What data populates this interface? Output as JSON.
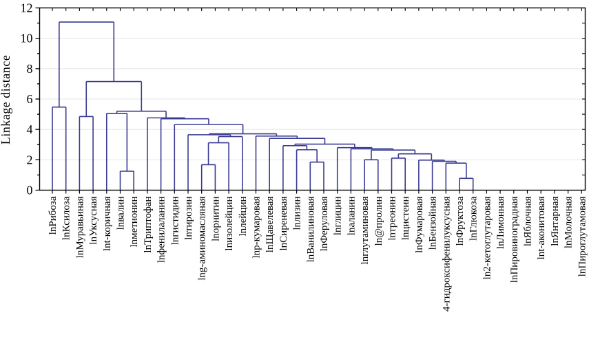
{
  "chart_data": {
    "type": "dendrogram",
    "title": "",
    "ylabel": "Linkage distance",
    "y_axis": {
      "min": 0,
      "max": 12,
      "major_tick_step": 2,
      "minor_tick_step": 1,
      "tick_labels": [
        "0",
        "2",
        "4",
        "6",
        "8",
        "10",
        "12"
      ],
      "grid_at_major_ticks": true
    },
    "legend": "none",
    "leaves": [
      "lnРибоза",
      "lnКсилоза",
      "lnМуравьиная",
      "lnУксусная",
      "lnt-коричная",
      "lnвалин",
      "lnметионин",
      "lnТриптофан",
      "lnфенилаланин",
      "lnгистидин",
      "lnтирозин",
      "lng-аминомасляная",
      "lnорнитин",
      "lnизолейцин",
      "lnлейцин",
      "lnp-кумаровая",
      "lnЩавелевая",
      "lnСиреневая",
      "lnлизин",
      "lnВанилиновая",
      "lnФеруловая",
      "lnглицин",
      "lnаланин",
      "lnглутаминовая",
      "ln@пролин",
      "lnтреонин",
      "lnцистеин",
      "lnФумаровая",
      "lnБензойная",
      "4-гидроксифенилуксусная",
      "lnФруктоза",
      "lnГлюкоза",
      "ln2-кетоглутаровая",
      "lnЛимонная",
      "lnПировиноградная",
      "lnЯблочная",
      "lnt-аконитовая",
      "lnЯнтарная",
      "lnМолочная",
      "lnПироглутамовая"
    ],
    "unconnected_leaves": [
      "ln2-кетоглутаровая",
      "lnЛимонная",
      "lnПировиноградная",
      "lnЯблочная",
      "lnt-аконитовая",
      "lnЯнтарная",
      "lnМолочная",
      "lnПироглутамовая"
    ],
    "merges": [
      {
        "id": "m0",
        "a": 5,
        "b": 6,
        "h": 1.25
      },
      {
        "id": "m1",
        "a": 4,
        "b": "m0",
        "h": 5.05
      },
      {
        "id": "m2",
        "a": 11,
        "b": 12,
        "h": 1.68
      },
      {
        "id": "m3",
        "a": "m2",
        "b": 13,
        "h": 3.12
      },
      {
        "id": "m4",
        "a": "m3",
        "b": 14,
        "h": 3.53
      },
      {
        "id": "m5",
        "a": 10,
        "b": "m4",
        "h": 3.65
      },
      {
        "id": "m6",
        "a": 19,
        "b": 20,
        "h": 1.85
      },
      {
        "id": "m7",
        "a": 18,
        "b": "m6",
        "h": 2.66
      },
      {
        "id": "m8",
        "a": 17,
        "b": "m7",
        "h": 2.93
      },
      {
        "id": "m9",
        "a": 30,
        "b": 31,
        "h": 0.78
      },
      {
        "id": "m10",
        "a": 29,
        "b": "m9",
        "h": 1.78
      },
      {
        "id": "m11",
        "a": 28,
        "b": "m10",
        "h": 1.9
      },
      {
        "id": "m12",
        "a": 27,
        "b": "m11",
        "h": 1.98
      },
      {
        "id": "m13",
        "a": 25,
        "b": 26,
        "h": 2.11
      },
      {
        "id": "m14",
        "a": "m13",
        "b": "m12",
        "h": 2.39
      },
      {
        "id": "m15",
        "a": 23,
        "b": 24,
        "h": 2.0
      },
      {
        "id": "m16",
        "a": "m15",
        "b": "m14",
        "h": 2.64
      },
      {
        "id": "m17",
        "a": 22,
        "b": "m16",
        "h": 2.72
      },
      {
        "id": "m18",
        "a": 21,
        "b": "m17",
        "h": 2.8
      },
      {
        "id": "m19",
        "a": "m8",
        "b": "m18",
        "h": 3.03
      },
      {
        "id": "m20",
        "a": 16,
        "b": "m19",
        "h": 3.41
      },
      {
        "id": "m21",
        "a": 15,
        "b": "m20",
        "h": 3.56
      },
      {
        "id": "m22",
        "a": "m5",
        "b": "m21",
        "h": 3.71
      },
      {
        "id": "m23",
        "a": 9,
        "b": "m22",
        "h": 4.33
      },
      {
        "id": "m24",
        "a": 8,
        "b": "m23",
        "h": 4.7
      },
      {
        "id": "m25",
        "a": 7,
        "b": "m24",
        "h": 4.76
      },
      {
        "id": "m26",
        "a": "m1",
        "b": "m25",
        "h": 5.2
      },
      {
        "id": "m27",
        "a": 2,
        "b": 3,
        "h": 4.85
      },
      {
        "id": "m28",
        "a": "m27",
        "b": "m26",
        "h": 7.15
      },
      {
        "id": "m29",
        "a": 0,
        "b": 1,
        "h": 5.47
      },
      {
        "id": "m30",
        "a": "m29",
        "b": "m28",
        "h": 11.07
      }
    ],
    "colors": {
      "line": "#3a3a92",
      "axis": "#000000",
      "grid": "#e4e4e4",
      "text": "#000000",
      "background": "#ffffff"
    }
  }
}
